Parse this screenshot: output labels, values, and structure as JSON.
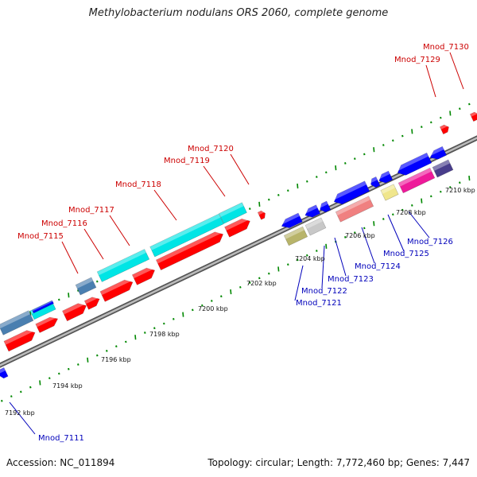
{
  "title": "Methylobacterium nodulans ORS 2060, complete genome",
  "footer": {
    "accession": "Accession: NC_011894",
    "stats": "Topology: circular; Length: 7,772,460 bp; Genes: 7,447"
  },
  "kbp_ticks": [
    "7192 kbp",
    "7194 kbp",
    "7196 kbp",
    "7198 kbp",
    "7200 kbp",
    "7202 kbp",
    "7204 kbp",
    "7206 kbp",
    "7208 kbp",
    "7210 kbp"
  ],
  "forward_labels": [
    "Mnod_7115",
    "Mnod_7116",
    "Mnod_7117",
    "Mnod_7118",
    "Mnod_7119",
    "Mnod_7120",
    "Mnod_7129",
    "Mnod_7130"
  ],
  "reverse_labels": [
    "Mnod_7111",
    "Mnod_7121",
    "Mnod_7122",
    "Mnod_7123",
    "Mnod_7124",
    "Mnod_7125",
    "Mnod_7126"
  ],
  "colors": {
    "forward_label": "#cc0000",
    "reverse_label": "#0000bb",
    "cds_forward": "#ff0000",
    "cds_reverse": "#0000ff",
    "cyan": "#00e5e5",
    "steel": "#4a7fb0",
    "olive": "#b8b46a",
    "grey": "#c8c8c8",
    "salmon": "#f08080",
    "khaki": "#f0e68c",
    "magenta": "#ee1a9a",
    "slate": "#483d8b",
    "tick": "#008800",
    "backbone": "#888888"
  }
}
